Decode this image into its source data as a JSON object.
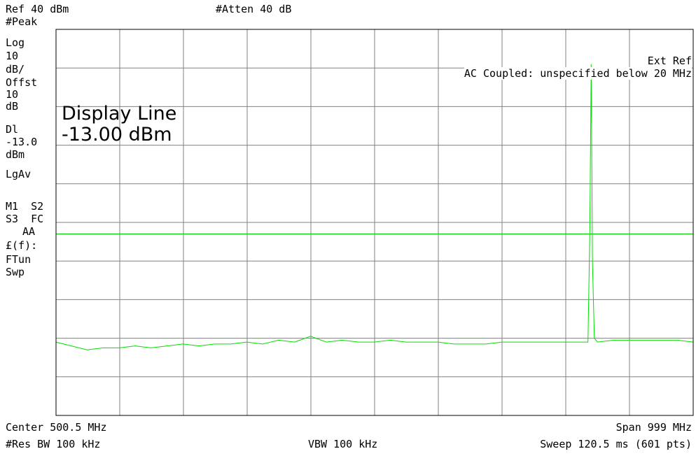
{
  "header": {
    "ref_level": "Ref 40 dBm",
    "attenuation": "#Atten 40 dB"
  },
  "side_panel": {
    "detector": "#Peak",
    "scale_type": "Log",
    "scale_value": "10",
    "scale_unit": "dB/",
    "offset_label": "Offst",
    "offset_value": "10",
    "offset_unit": "dB",
    "dl_label": "Dl",
    "dl_value": "-13.0",
    "dl_unit": "dBm",
    "avg": "LgAv",
    "trace_row1": "M1  S2",
    "trace_row2": "S3  FC",
    "trace_row3": "AA",
    "ff_label": "£(f):",
    "ftun": "FTun",
    "swp": "Swp"
  },
  "annotations": {
    "display_line_title": "Display Line",
    "display_line_value": "-13.00 dBm",
    "ext_ref": "Ext Ref",
    "ac_coupled": "AC Coupled: unspecified below 20 MHz"
  },
  "footer": {
    "center": "Center 500.5 MHz",
    "span": "Span 999 MHz",
    "res_bw": "#Res BW 100 kHz",
    "vbw": "VBW 100 kHz",
    "sweep": "Sweep 120.5 ms (601 pts)"
  },
  "colors": {
    "trace": "#00e000",
    "grid": "#808080",
    "display_line": "#00cc00"
  },
  "chart_data": {
    "type": "line",
    "title": "",
    "xlabel": "",
    "ylabel": "",
    "xlim": [
      1.0,
      1000.0
    ],
    "ylim": [
      -60,
      40
    ],
    "grid": true,
    "y_divisions": 10,
    "x_divisions": 10,
    "x_unit": "MHz",
    "y_unit": "dBm",
    "display_line": -13.0,
    "series": [
      {
        "x": [
          1,
          25,
          50,
          75,
          100,
          125,
          150,
          175,
          200,
          225,
          250,
          275,
          300,
          325,
          350,
          375,
          400,
          425,
          450,
          475,
          500,
          525,
          550,
          575,
          600,
          625,
          650,
          675,
          700,
          725,
          750,
          775,
          800,
          820,
          830,
          835,
          838,
          840,
          842,
          845,
          850,
          875,
          900,
          925,
          950,
          975,
          1000
        ],
        "y": [
          -41,
          -42,
          -43,
          -42.5,
          -42.5,
          -42,
          -42.5,
          -42,
          -41.5,
          -42,
          -41.5,
          -41.5,
          -41,
          -41.5,
          -40.5,
          -41,
          -39.5,
          -41,
          -40.5,
          -41,
          -41,
          -40.5,
          -41,
          -41,
          -41,
          -41.5,
          -41.5,
          -41.5,
          -41,
          -41,
          -41,
          -41,
          -41,
          -41,
          -41,
          -41,
          -12,
          31,
          -20,
          -40,
          -41,
          -40.5,
          -40.5,
          -40.5,
          -40.5,
          -40.5,
          -41
        ]
      }
    ]
  }
}
